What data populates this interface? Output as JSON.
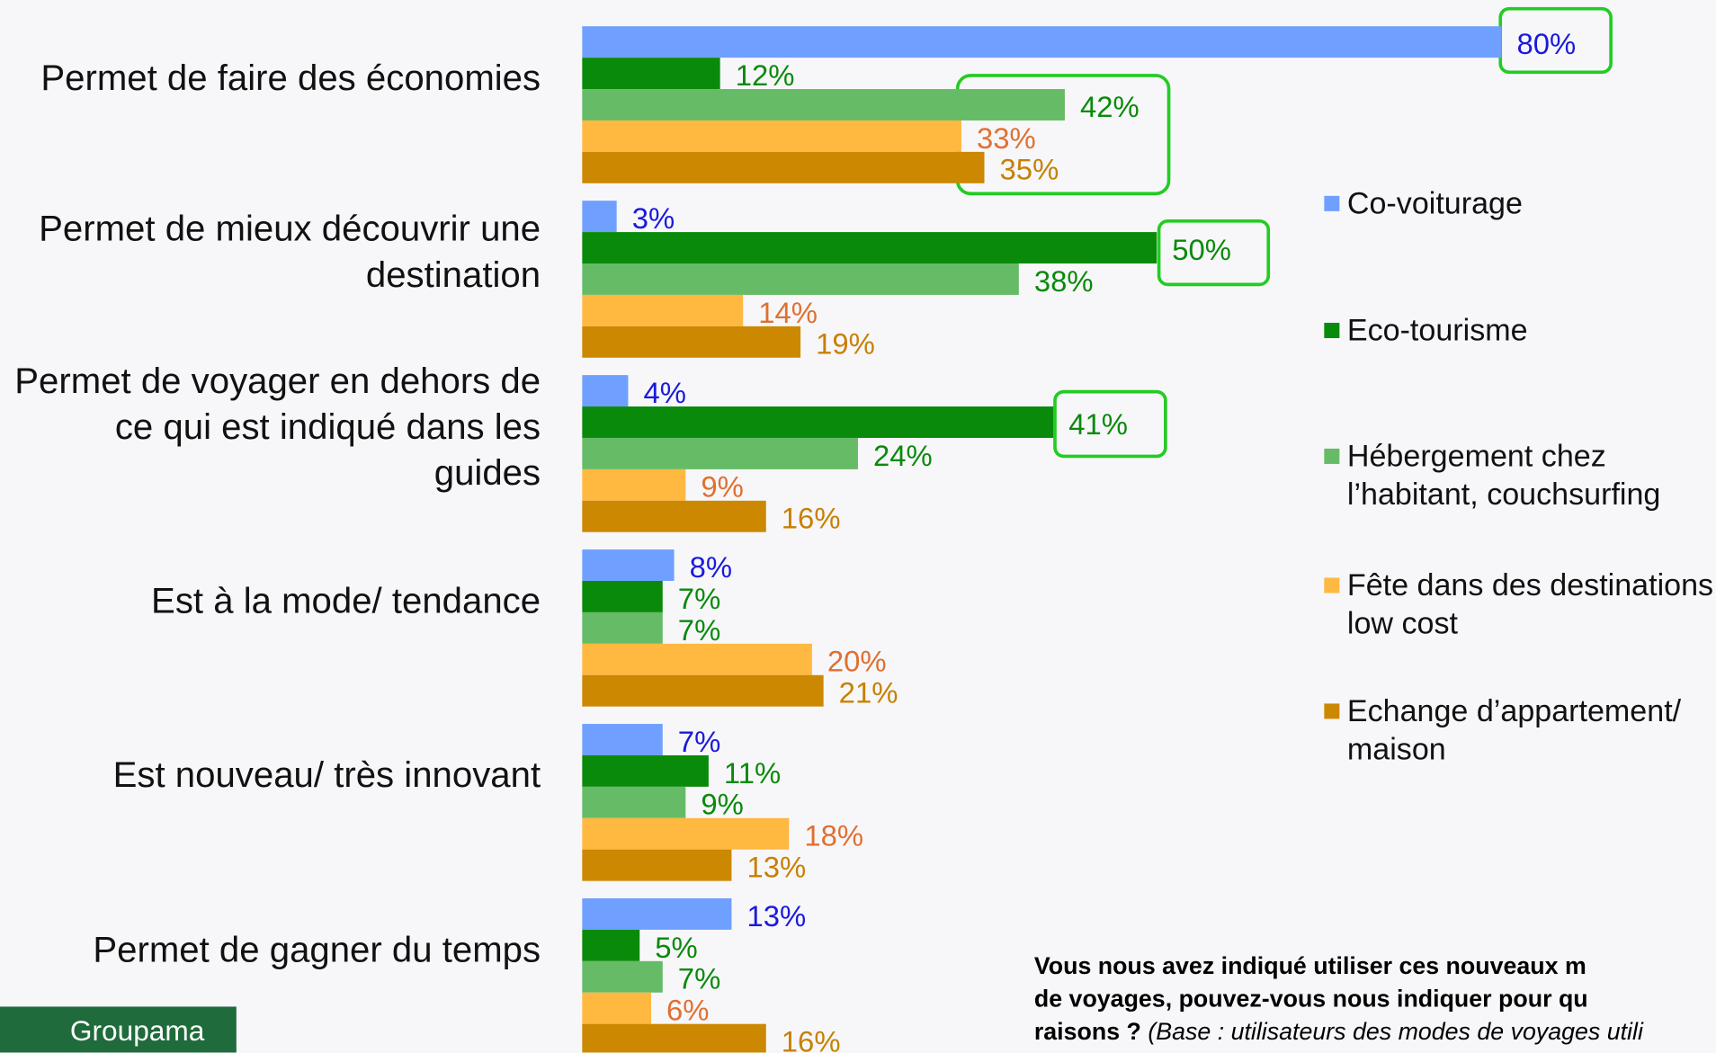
{
  "chart_data": {
    "type": "hbar",
    "categories": [
      "Permet de faire des économies",
      "Permet de mieux découvrir une destination",
      "Permet de voyager en dehors de ce qui est indiqué dans les guides",
      "Est à la mode/ tendance",
      "Est nouveau/ très innovant",
      "Permet de gagner du temps"
    ],
    "series": [
      {
        "name": "Co-voiturage",
        "color": "#6fa0ff",
        "label_color": "#1a1adc",
        "values": [
          80,
          3,
          4,
          8,
          7,
          13
        ],
        "value_labels": [
          "80%",
          "3%",
          "4%",
          "8%",
          "7%",
          "13%"
        ]
      },
      {
        "name": "Eco-tourisme",
        "color": "#0a8a0a",
        "label_color": "#0a8a0a",
        "values": [
          12,
          50,
          41,
          7,
          11,
          5
        ],
        "value_labels": [
          "12%",
          "50%",
          "41%",
          "7%",
          "11%",
          "5%"
        ]
      },
      {
        "name": "Hébergement chez l’habitant, couchsurfing",
        "color": "#66bb66",
        "label_color": "#0a8a0a",
        "values": [
          42,
          38,
          24,
          7,
          9,
          7
        ],
        "value_labels": [
          "42%",
          "38%",
          "24%",
          "7%",
          "9%",
          "7%"
        ]
      },
      {
        "name": "Fête dans des destinations low cost",
        "color": "#ffb840",
        "label_color": "#e07030",
        "values": [
          33,
          14,
          9,
          20,
          18,
          6
        ],
        "value_labels": [
          "33%",
          "14%",
          "9%",
          "20%",
          "18%",
          "6%"
        ]
      },
      {
        "name": "Echange d’appartement/ maison",
        "color": "#cc8800",
        "label_color": "#c88000",
        "values": [
          35,
          19,
          16,
          21,
          13,
          16
        ],
        "value_labels": [
          "35%",
          "19%",
          "16%",
          "21%",
          "13%",
          "16%"
        ]
      }
    ],
    "note": [
      "Vous nous avez indiqué utiliser ces nouveaux m",
      "de voyages, pouvez-vous nous indiquer pour qu",
      "raisons ?"
    ],
    "base_note": "(Base : utilisateurs des modes de voyages utili"
  },
  "logo": "Groupama"
}
